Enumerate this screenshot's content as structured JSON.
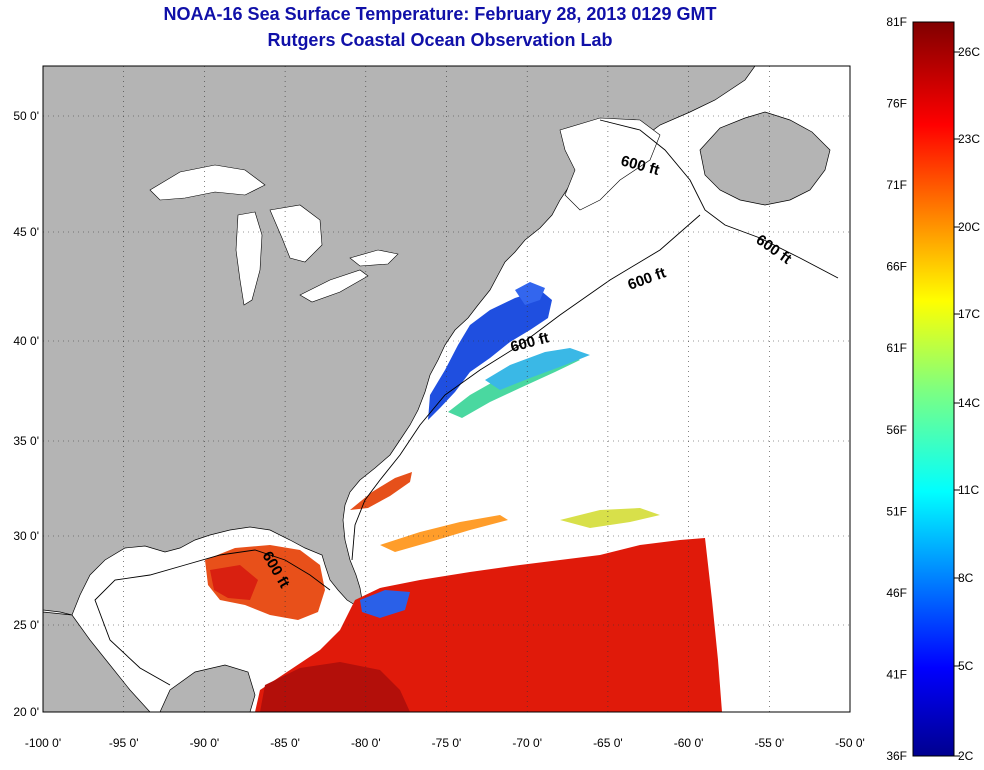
{
  "title": "NOAA-16 Sea Surface Temperature:  February 28, 2013 0129 GMT",
  "subtitle": "Rutgers Coastal Ocean Observation Lab",
  "axes": {
    "x_ticks": [
      "-100 0'",
      "-95 0'",
      "-90 0'",
      "-85 0'",
      "-80 0'",
      "-75 0'",
      "-70 0'",
      "-65 0'",
      "-60 0'",
      "-55 0'",
      "-50 0'"
    ],
    "y_ticks": [
      "20 0'",
      "25 0'",
      "30 0'",
      "35 0'",
      "40 0'",
      "45 0'",
      "50 0'"
    ]
  },
  "contour_label": "600 ft",
  "colorbar": {
    "fahrenheit": [
      "81F",
      "76F",
      "71F",
      "66F",
      "61F",
      "56F",
      "51F",
      "46F",
      "41F",
      "36F"
    ],
    "celsius": [
      "26C",
      "23C",
      "20C",
      "17C",
      "14C",
      "11C",
      "8C",
      "5C",
      "2C"
    ]
  },
  "colors": {
    "land": "#b4b4b4",
    "cloud": "#ffffff",
    "title": "#1010a8",
    "warm": "#e01a0a",
    "cool": "#1f4fe0"
  }
}
